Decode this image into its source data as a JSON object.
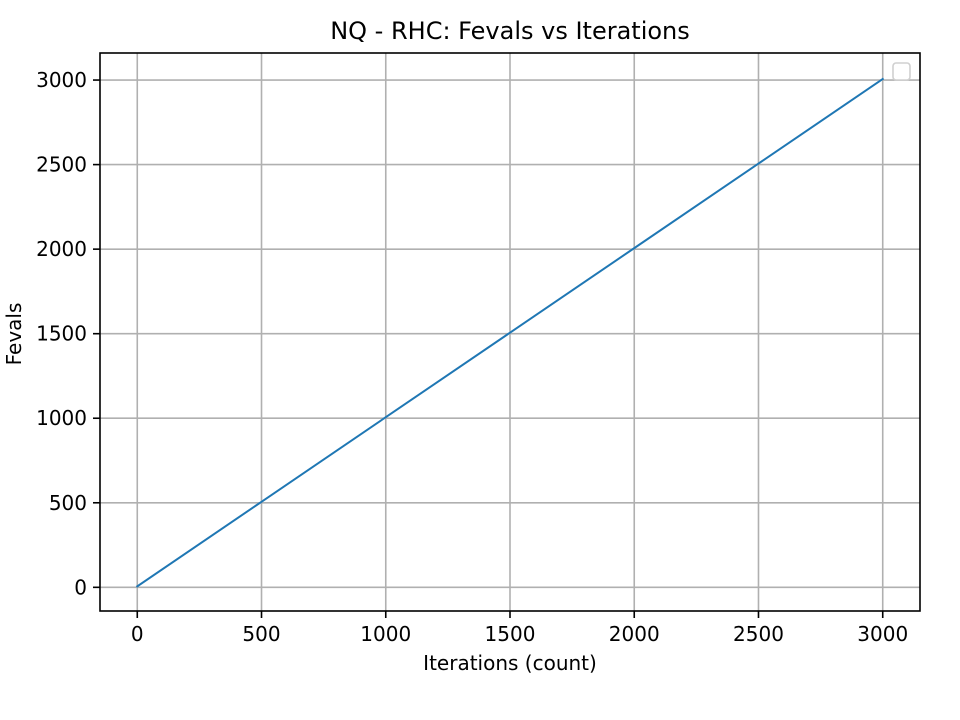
{
  "chart_data": {
    "type": "line",
    "title": "NQ - RHC: Fevals vs Iterations",
    "xlabel": "Iterations (count)",
    "ylabel": "Fevals",
    "xlim": [
      -150,
      3150
    ],
    "ylim": [
      -140,
      3160
    ],
    "xticks": [
      0,
      500,
      1000,
      1500,
      2000,
      2500,
      3000
    ],
    "yticks": [
      0,
      500,
      1000,
      1500,
      2000,
      2500,
      3000
    ],
    "grid": true,
    "legend": {
      "placement": "upper-right",
      "entries": []
    },
    "series": [
      {
        "color": "#1f77b4",
        "x": [
          0,
          500,
          1000,
          1500,
          2000,
          2500,
          3000
        ],
        "y": [
          6,
          506,
          1006,
          1506,
          2006,
          2506,
          3006
        ]
      }
    ]
  }
}
